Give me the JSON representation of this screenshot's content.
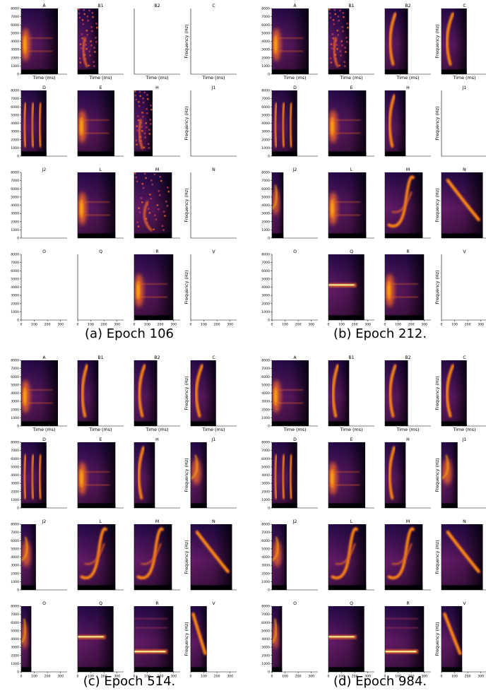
{
  "colors": {
    "background": "#000000",
    "axis": "#000000",
    "colormap": [
      "#000004",
      "#2a0b52",
      "#6a1c6e",
      "#b13b5a",
      "#e8632c",
      "#fca50a",
      "#fcffa4"
    ]
  },
  "axis": {
    "xlabel": "Time (ms)",
    "ylabel": "Frequency (Hz)",
    "yticks": [
      "0",
      "1000",
      "2000",
      "3000",
      "4000",
      "5000",
      "6000",
      "7000",
      "8000"
    ],
    "xticks": [
      "0",
      "100",
      "200",
      "300"
    ]
  },
  "panels": [
    {
      "caption": "(a) Epoch 106",
      "cells": [
        {
          "label": "A",
          "kind": "spectrogram",
          "pattern": "broad",
          "width": 0.8
        },
        {
          "label": "B1",
          "kind": "spectrogram",
          "pattern": "noisy",
          "width": 0.45
        },
        {
          "label": "B2",
          "kind": "empty"
        },
        {
          "label": "C",
          "kind": "empty"
        },
        {
          "label": "D",
          "kind": "spectrogram",
          "pattern": "bands3",
          "width": 0.55
        },
        {
          "label": "E",
          "kind": "spectrogram",
          "pattern": "broad",
          "width": 0.8
        },
        {
          "label": "H",
          "kind": "spectrogram",
          "pattern": "noisy",
          "width": 0.4
        },
        {
          "label": "J1",
          "kind": "empty"
        },
        {
          "label": "J2",
          "kind": "empty"
        },
        {
          "label": "L",
          "kind": "spectrogram",
          "pattern": "broad",
          "width": 0.82
        },
        {
          "label": "M",
          "kind": "spectrogram",
          "pattern": "noisy",
          "width": 0.82
        },
        {
          "label": "N",
          "kind": "empty"
        },
        {
          "label": "O",
          "kind": "empty"
        },
        {
          "label": "Q",
          "kind": "empty"
        },
        {
          "label": "R",
          "kind": "spectrogram",
          "pattern": "broad",
          "width": 0.85
        },
        {
          "label": "V",
          "kind": "empty"
        }
      ]
    },
    {
      "caption": "(b) Epoch 212.",
      "cells": [
        {
          "label": "A",
          "kind": "spectrogram",
          "pattern": "broad",
          "width": 0.8
        },
        {
          "label": "B1",
          "kind": "spectrogram",
          "pattern": "noisy",
          "width": 0.45
        },
        {
          "label": "B2",
          "kind": "spectrogram",
          "pattern": "curve",
          "width": 0.5
        },
        {
          "label": "C",
          "kind": "spectrogram",
          "pattern": "curve",
          "width": 0.55
        },
        {
          "label": "D",
          "kind": "spectrogram",
          "pattern": "bands3",
          "width": 0.55
        },
        {
          "label": "E",
          "kind": "spectrogram",
          "pattern": "broad",
          "width": 0.82
        },
        {
          "label": "H",
          "kind": "spectrogram",
          "pattern": "curve",
          "width": 0.45
        },
        {
          "label": "J1",
          "kind": "empty"
        },
        {
          "label": "J2",
          "kind": "spectrogram",
          "pattern": "burst",
          "width": 0.25
        },
        {
          "label": "L",
          "kind": "spectrogram",
          "pattern": "broad",
          "width": 0.82
        },
        {
          "label": "M",
          "kind": "spectrogram",
          "pattern": "sweep",
          "width": 0.82
        },
        {
          "label": "N",
          "kind": "spectrogram",
          "pattern": "downsweep",
          "width": 0.9
        },
        {
          "label": "O",
          "kind": "empty"
        },
        {
          "label": "Q",
          "kind": "spectrogram",
          "pattern": "hband",
          "width": 0.78
        },
        {
          "label": "R",
          "kind": "spectrogram",
          "pattern": "broad",
          "width": 0.85
        },
        {
          "label": "V",
          "kind": "empty"
        }
      ]
    },
    {
      "caption": "(c) Epoch 514.",
      "cells": [
        {
          "label": "A",
          "kind": "spectrogram",
          "pattern": "broad",
          "width": 0.8
        },
        {
          "label": "B1",
          "kind": "spectrogram",
          "pattern": "curve",
          "width": 0.45
        },
        {
          "label": "B2",
          "kind": "spectrogram",
          "pattern": "curve",
          "width": 0.5
        },
        {
          "label": "C",
          "kind": "spectrogram",
          "pattern": "curve",
          "width": 0.55
        },
        {
          "label": "D",
          "kind": "spectrogram",
          "pattern": "bands3",
          "width": 0.55
        },
        {
          "label": "E",
          "kind": "spectrogram",
          "pattern": "broad",
          "width": 0.82
        },
        {
          "label": "H",
          "kind": "spectrogram",
          "pattern": "curve",
          "width": 0.45
        },
        {
          "label": "J1",
          "kind": "spectrogram",
          "pattern": "burst",
          "width": 0.35
        },
        {
          "label": "J2",
          "kind": "spectrogram",
          "pattern": "burst",
          "width": 0.32
        },
        {
          "label": "L",
          "kind": "spectrogram",
          "pattern": "sweep",
          "width": 0.82
        },
        {
          "label": "M",
          "kind": "spectrogram",
          "pattern": "sweep",
          "width": 0.82
        },
        {
          "label": "N",
          "kind": "spectrogram",
          "pattern": "downsweep",
          "width": 0.9
        },
        {
          "label": "O",
          "kind": "spectrogram",
          "pattern": "burst",
          "width": 0.22
        },
        {
          "label": "Q",
          "kind": "spectrogram",
          "pattern": "hband",
          "width": 0.78
        },
        {
          "label": "R",
          "kind": "spectrogram",
          "pattern": "hband2",
          "width": 0.85
        },
        {
          "label": "V",
          "kind": "spectrogram",
          "pattern": "downsweep",
          "width": 0.35
        }
      ]
    },
    {
      "caption": "(d) Epoch 984.",
      "cells": [
        {
          "label": "A",
          "kind": "spectrogram",
          "pattern": "broad",
          "width": 0.8
        },
        {
          "label": "B1",
          "kind": "spectrogram",
          "pattern": "curve",
          "width": 0.45
        },
        {
          "label": "B2",
          "kind": "spectrogram",
          "pattern": "curve",
          "width": 0.5
        },
        {
          "label": "C",
          "kind": "spectrogram",
          "pattern": "curve",
          "width": 0.55
        },
        {
          "label": "D",
          "kind": "spectrogram",
          "pattern": "bands3",
          "width": 0.55
        },
        {
          "label": "E",
          "kind": "spectrogram",
          "pattern": "broad",
          "width": 0.8
        },
        {
          "label": "H",
          "kind": "spectrogram",
          "pattern": "curve",
          "width": 0.45
        },
        {
          "label": "J1",
          "kind": "spectrogram",
          "pattern": "burst",
          "width": 0.35
        },
        {
          "label": "J2",
          "kind": "spectrogram",
          "pattern": "burst",
          "width": 0.32
        },
        {
          "label": "L",
          "kind": "spectrogram",
          "pattern": "sweep",
          "width": 0.82
        },
        {
          "label": "M",
          "kind": "spectrogram",
          "pattern": "sweep",
          "width": 0.82
        },
        {
          "label": "N",
          "kind": "spectrogram",
          "pattern": "downsweep",
          "width": 0.9
        },
        {
          "label": "O",
          "kind": "spectrogram",
          "pattern": "burst",
          "width": 0.22
        },
        {
          "label": "Q",
          "kind": "spectrogram",
          "pattern": "hband",
          "width": 0.78
        },
        {
          "label": "R",
          "kind": "spectrogram",
          "pattern": "hband2",
          "width": 0.85
        },
        {
          "label": "V",
          "kind": "spectrogram",
          "pattern": "downsweep",
          "width": 0.45
        }
      ]
    }
  ]
}
